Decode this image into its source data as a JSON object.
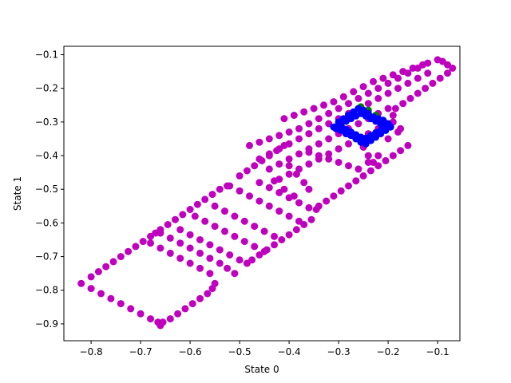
{
  "chart_data": {
    "type": "scatter",
    "title": "",
    "xlabel": "State 0",
    "ylabel": "State 1",
    "xlim": [
      -0.855,
      -0.055
    ],
    "ylim": [
      -0.95,
      -0.075
    ],
    "xticks": [
      -0.8,
      -0.7,
      -0.6,
      -0.5,
      -0.4,
      -0.3,
      -0.2,
      -0.1
    ],
    "yticks": [
      -0.9,
      -0.8,
      -0.7,
      -0.6,
      -0.5,
      -0.4,
      -0.3,
      -0.2,
      -0.1
    ],
    "xtick_labels": [
      "−0.8",
      "−0.7",
      "−0.6",
      "−0.5",
      "−0.4",
      "−0.3",
      "−0.2",
      "−0.1"
    ],
    "ytick_labels": [
      "−0.9",
      "−0.8",
      "−0.7",
      "−0.6",
      "−0.5",
      "−0.4",
      "−0.3",
      "−0.2",
      "−0.1"
    ],
    "grid": false,
    "legend": "none",
    "series": [
      {
        "color": "#bf00bf",
        "points": [
          [
            -0.82,
            -0.78
          ],
          [
            -0.8,
            -0.795
          ],
          [
            -0.78,
            -0.81
          ],
          [
            -0.76,
            -0.825
          ],
          [
            -0.74,
            -0.84
          ],
          [
            -0.72,
            -0.855
          ],
          [
            -0.7,
            -0.87
          ],
          [
            -0.68,
            -0.885
          ],
          [
            -0.665,
            -0.895
          ],
          [
            -0.66,
            -0.905
          ],
          [
            -0.655,
            -0.895
          ],
          [
            -0.64,
            -0.885
          ],
          [
            -0.625,
            -0.87
          ],
          [
            -0.61,
            -0.855
          ],
          [
            -0.595,
            -0.84
          ],
          [
            -0.58,
            -0.825
          ],
          [
            -0.565,
            -0.81
          ],
          [
            -0.555,
            -0.795
          ],
          [
            -0.55,
            -0.78
          ],
          [
            -0.8,
            -0.76
          ],
          [
            -0.785,
            -0.745
          ],
          [
            -0.77,
            -0.73
          ],
          [
            -0.755,
            -0.715
          ],
          [
            -0.74,
            -0.7
          ],
          [
            -0.725,
            -0.685
          ],
          [
            -0.71,
            -0.67
          ],
          [
            -0.695,
            -0.655
          ],
          [
            -0.68,
            -0.64
          ],
          [
            -0.67,
            -0.63
          ],
          [
            -0.66,
            -0.63
          ],
          [
            -0.64,
            -0.645
          ],
          [
            -0.62,
            -0.66
          ],
          [
            -0.6,
            -0.675
          ],
          [
            -0.58,
            -0.69
          ],
          [
            -0.56,
            -0.705
          ],
          [
            -0.54,
            -0.72
          ],
          [
            -0.525,
            -0.735
          ],
          [
            -0.51,
            -0.75
          ],
          [
            -0.68,
            -0.66
          ],
          [
            -0.66,
            -0.675
          ],
          [
            -0.64,
            -0.69
          ],
          [
            -0.62,
            -0.705
          ],
          [
            -0.6,
            -0.72
          ],
          [
            -0.58,
            -0.735
          ],
          [
            -0.56,
            -0.75
          ],
          [
            -0.66,
            -0.62
          ],
          [
            -0.645,
            -0.605
          ],
          [
            -0.63,
            -0.59
          ],
          [
            -0.615,
            -0.575
          ],
          [
            -0.6,
            -0.56
          ],
          [
            -0.585,
            -0.545
          ],
          [
            -0.57,
            -0.53
          ],
          [
            -0.555,
            -0.515
          ],
          [
            -0.54,
            -0.5
          ],
          [
            -0.525,
            -0.49
          ],
          [
            -0.62,
            -0.62
          ],
          [
            -0.6,
            -0.635
          ],
          [
            -0.58,
            -0.65
          ],
          [
            -0.56,
            -0.665
          ],
          [
            -0.54,
            -0.68
          ],
          [
            -0.52,
            -0.695
          ],
          [
            -0.5,
            -0.71
          ],
          [
            -0.485,
            -0.72
          ],
          [
            -0.475,
            -0.71
          ],
          [
            -0.46,
            -0.695
          ],
          [
            -0.445,
            -0.68
          ],
          [
            -0.43,
            -0.665
          ],
          [
            -0.415,
            -0.65
          ],
          [
            -0.4,
            -0.635
          ],
          [
            -0.385,
            -0.62
          ],
          [
            -0.37,
            -0.605
          ],
          [
            -0.355,
            -0.59
          ],
          [
            -0.59,
            -0.58
          ],
          [
            -0.57,
            -0.595
          ],
          [
            -0.55,
            -0.61
          ],
          [
            -0.53,
            -0.625
          ],
          [
            -0.51,
            -0.64
          ],
          [
            -0.49,
            -0.655
          ],
          [
            -0.47,
            -0.67
          ],
          [
            -0.45,
            -0.685
          ],
          [
            -0.55,
            -0.55
          ],
          [
            -0.53,
            -0.565
          ],
          [
            -0.51,
            -0.58
          ],
          [
            -0.49,
            -0.595
          ],
          [
            -0.47,
            -0.61
          ],
          [
            -0.45,
            -0.625
          ],
          [
            -0.43,
            -0.64
          ],
          [
            -0.52,
            -0.49
          ],
          [
            -0.5,
            -0.505
          ],
          [
            -0.48,
            -0.52
          ],
          [
            -0.46,
            -0.535
          ],
          [
            -0.44,
            -0.55
          ],
          [
            -0.42,
            -0.565
          ],
          [
            -0.4,
            -0.58
          ],
          [
            -0.38,
            -0.595
          ],
          [
            -0.5,
            -0.46
          ],
          [
            -0.485,
            -0.445
          ],
          [
            -0.47,
            -0.43
          ],
          [
            -0.455,
            -0.415
          ],
          [
            -0.44,
            -0.4
          ],
          [
            -0.425,
            -0.385
          ],
          [
            -0.41,
            -0.37
          ],
          [
            -0.46,
            -0.48
          ],
          [
            -0.44,
            -0.495
          ],
          [
            -0.42,
            -0.51
          ],
          [
            -0.4,
            -0.525
          ],
          [
            -0.38,
            -0.54
          ],
          [
            -0.36,
            -0.555
          ],
          [
            -0.345,
            -0.56
          ],
          [
            -0.34,
            -0.55
          ],
          [
            -0.325,
            -0.535
          ],
          [
            -0.31,
            -0.52
          ],
          [
            -0.295,
            -0.505
          ],
          [
            -0.28,
            -0.49
          ],
          [
            -0.265,
            -0.475
          ],
          [
            -0.25,
            -0.46
          ],
          [
            -0.235,
            -0.445
          ],
          [
            -0.22,
            -0.43
          ],
          [
            -0.205,
            -0.415
          ],
          [
            -0.19,
            -0.4
          ],
          [
            -0.175,
            -0.385
          ],
          [
            -0.16,
            -0.37
          ],
          [
            -0.48,
            -0.37
          ],
          [
            -0.46,
            -0.36
          ],
          [
            -0.44,
            -0.35
          ],
          [
            -0.42,
            -0.34
          ],
          [
            -0.4,
            -0.33
          ],
          [
            -0.38,
            -0.32
          ],
          [
            -0.36,
            -0.305
          ],
          [
            -0.34,
            -0.29
          ],
          [
            -0.32,
            -0.275
          ],
          [
            -0.3,
            -0.26
          ],
          [
            -0.28,
            -0.245
          ],
          [
            -0.26,
            -0.23
          ],
          [
            -0.24,
            -0.215
          ],
          [
            -0.22,
            -0.2
          ],
          [
            -0.2,
            -0.185
          ],
          [
            -0.18,
            -0.17
          ],
          [
            -0.16,
            -0.155
          ],
          [
            -0.14,
            -0.14
          ],
          [
            -0.12,
            -0.125
          ],
          [
            -0.1,
            -0.115
          ],
          [
            -0.09,
            -0.12
          ],
          [
            -0.08,
            -0.13
          ],
          [
            -0.07,
            -0.14
          ],
          [
            -0.08,
            -0.155
          ],
          [
            -0.095,
            -0.17
          ],
          [
            -0.11,
            -0.185
          ],
          [
            -0.125,
            -0.2
          ],
          [
            -0.14,
            -0.215
          ],
          [
            -0.155,
            -0.23
          ],
          [
            -0.17,
            -0.245
          ],
          [
            -0.185,
            -0.26
          ],
          [
            -0.19,
            -0.28
          ],
          [
            -0.19,
            -0.3
          ],
          [
            -0.175,
            -0.32
          ],
          [
            -0.46,
            -0.41
          ],
          [
            -0.44,
            -0.395
          ],
          [
            -0.42,
            -0.38
          ],
          [
            -0.4,
            -0.365
          ],
          [
            -0.38,
            -0.35
          ],
          [
            -0.36,
            -0.335
          ],
          [
            -0.34,
            -0.32
          ],
          [
            -0.32,
            -0.305
          ],
          [
            -0.3,
            -0.29
          ],
          [
            -0.28,
            -0.275
          ],
          [
            -0.26,
            -0.26
          ],
          [
            -0.24,
            -0.245
          ],
          [
            -0.22,
            -0.23
          ],
          [
            -0.2,
            -0.215
          ],
          [
            -0.18,
            -0.2
          ],
          [
            -0.16,
            -0.185
          ],
          [
            -0.14,
            -0.17
          ],
          [
            -0.12,
            -0.155
          ],
          [
            -0.44,
            -0.44
          ],
          [
            -0.42,
            -0.425
          ],
          [
            -0.4,
            -0.41
          ],
          [
            -0.38,
            -0.395
          ],
          [
            -0.36,
            -0.38
          ],
          [
            -0.34,
            -0.365
          ],
          [
            -0.32,
            -0.35
          ],
          [
            -0.3,
            -0.335
          ],
          [
            -0.28,
            -0.32
          ],
          [
            -0.26,
            -0.305
          ],
          [
            -0.24,
            -0.29
          ],
          [
            -0.22,
            -0.275
          ],
          [
            -0.2,
            -0.26
          ],
          [
            -0.42,
            -0.47
          ],
          [
            -0.4,
            -0.455
          ],
          [
            -0.38,
            -0.44
          ],
          [
            -0.36,
            -0.425
          ],
          [
            -0.34,
            -0.41
          ],
          [
            -0.32,
            -0.395
          ],
          [
            -0.3,
            -0.38
          ],
          [
            -0.28,
            -0.365
          ],
          [
            -0.26,
            -0.35
          ],
          [
            -0.24,
            -0.335
          ],
          [
            -0.22,
            -0.32
          ],
          [
            -0.41,
            -0.29
          ],
          [
            -0.39,
            -0.28
          ],
          [
            -0.37,
            -0.27
          ],
          [
            -0.35,
            -0.26
          ],
          [
            -0.33,
            -0.25
          ],
          [
            -0.31,
            -0.24
          ],
          [
            -0.29,
            -0.225
          ],
          [
            -0.27,
            -0.21
          ],
          [
            -0.25,
            -0.195
          ],
          [
            -0.23,
            -0.18
          ],
          [
            -0.21,
            -0.17
          ],
          [
            -0.19,
            -0.16
          ],
          [
            -0.17,
            -0.15
          ],
          [
            -0.15,
            -0.14
          ],
          [
            -0.13,
            -0.13
          ],
          [
            -0.4,
            -0.43
          ],
          [
            -0.385,
            -0.455
          ],
          [
            -0.37,
            -0.48
          ],
          [
            -0.36,
            -0.5
          ],
          [
            -0.39,
            -0.52
          ],
          [
            -0.41,
            -0.5
          ],
          [
            -0.43,
            -0.475
          ],
          [
            -0.26,
            -0.35
          ],
          [
            -0.25,
            -0.375
          ],
          [
            -0.24,
            -0.4
          ],
          [
            -0.23,
            -0.42
          ],
          [
            -0.2,
            -0.35
          ],
          [
            -0.18,
            -0.33
          ],
          [
            -0.36,
            -0.39
          ],
          [
            -0.34,
            -0.4
          ],
          [
            -0.32,
            -0.41
          ],
          [
            -0.3,
            -0.42
          ],
          [
            -0.28,
            -0.43
          ],
          [
            -0.26,
            -0.44
          ],
          [
            -0.24,
            -0.42
          ],
          [
            -0.22,
            -0.4
          ]
        ]
      },
      {
        "color": "#008000",
        "points": [
          [
            -0.3,
            -0.305
          ],
          [
            -0.285,
            -0.29
          ],
          [
            -0.27,
            -0.275
          ],
          [
            -0.255,
            -0.255
          ],
          [
            -0.24,
            -0.265
          ],
          [
            -0.225,
            -0.28
          ],
          [
            -0.21,
            -0.295
          ],
          [
            -0.2,
            -0.31
          ],
          [
            -0.215,
            -0.325
          ],
          [
            -0.23,
            -0.345
          ],
          [
            -0.245,
            -0.36
          ],
          [
            -0.26,
            -0.35
          ],
          [
            -0.275,
            -0.335
          ],
          [
            -0.29,
            -0.32
          ]
        ]
      },
      {
        "color": "#0000ff",
        "points": [
          [
            -0.31,
            -0.315
          ],
          [
            -0.3,
            -0.3
          ],
          [
            -0.29,
            -0.29
          ],
          [
            -0.28,
            -0.28
          ],
          [
            -0.27,
            -0.27
          ],
          [
            -0.26,
            -0.26
          ],
          [
            -0.25,
            -0.265
          ],
          [
            -0.24,
            -0.275
          ],
          [
            -0.23,
            -0.285
          ],
          [
            -0.22,
            -0.29
          ],
          [
            -0.21,
            -0.295
          ],
          [
            -0.2,
            -0.305
          ],
          [
            -0.195,
            -0.315
          ],
          [
            -0.205,
            -0.325
          ],
          [
            -0.215,
            -0.335
          ],
          [
            -0.225,
            -0.345
          ],
          [
            -0.235,
            -0.355
          ],
          [
            -0.245,
            -0.365
          ],
          [
            -0.255,
            -0.36
          ],
          [
            -0.265,
            -0.35
          ],
          [
            -0.275,
            -0.34
          ],
          [
            -0.285,
            -0.335
          ],
          [
            -0.295,
            -0.325
          ],
          [
            -0.305,
            -0.32
          ],
          [
            -0.295,
            -0.305
          ],
          [
            -0.285,
            -0.298
          ],
          [
            -0.275,
            -0.29
          ],
          [
            -0.265,
            -0.282
          ],
          [
            -0.255,
            -0.275
          ],
          [
            -0.245,
            -0.282
          ],
          [
            -0.235,
            -0.29
          ],
          [
            -0.225,
            -0.298
          ],
          [
            -0.215,
            -0.305
          ],
          [
            -0.208,
            -0.315
          ],
          [
            -0.215,
            -0.325
          ],
          [
            -0.225,
            -0.332
          ],
          [
            -0.235,
            -0.34
          ],
          [
            -0.245,
            -0.348
          ],
          [
            -0.255,
            -0.345
          ],
          [
            -0.265,
            -0.338
          ],
          [
            -0.275,
            -0.33
          ],
          [
            -0.285,
            -0.322
          ],
          [
            -0.295,
            -0.315
          ]
        ]
      }
    ]
  }
}
